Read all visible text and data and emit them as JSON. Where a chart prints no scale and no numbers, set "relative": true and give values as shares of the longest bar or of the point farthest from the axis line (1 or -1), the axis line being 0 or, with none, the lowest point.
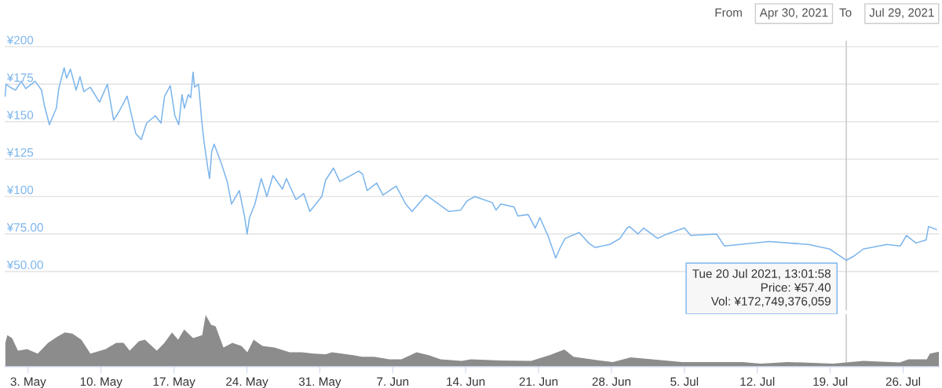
{
  "chart_data": [
    {
      "type": "line",
      "tick_labels": "y",
      "grid": "y",
      "xlim": [
        "2021-04-30T18:00",
        "2021-07-29T11:00"
      ],
      "ylim": [
        24,
        204
      ],
      "yticks": [
        {
          "value": 50,
          "label": "¥50.00"
        },
        {
          "value": 75,
          "label": "¥75.00"
        },
        {
          "value": 100,
          "label": "¥100"
        },
        {
          "value": 125,
          "label": "¥125"
        },
        {
          "value": 150,
          "label": "¥150"
        },
        {
          "value": 175,
          "label": "¥175"
        },
        {
          "value": 200,
          "label": "¥200"
        }
      ],
      "series": [
        {
          "color": "#7cb5ec",
          "x": [
            "2021-04-30T19:00",
            "2021-04-30T21:00",
            "2021-05-01T06:30",
            "2021-05-01T19:00",
            "2021-05-02T08:00",
            "2021-05-02T18:30",
            "2021-05-03T16:00",
            "2021-05-04T07:00",
            "2021-05-04T14:00",
            "2021-05-05T01:00",
            "2021-05-05T17:00",
            "2021-05-05T22:30",
            "2021-05-06T11:00",
            "2021-05-06T16:30",
            "2021-05-07T01:30",
            "2021-05-07T14:30",
            "2021-05-07T23:30",
            "2021-05-08T08:30",
            "2021-05-08T23:00",
            "2021-05-09T20:30",
            "2021-05-10T14:30",
            "2021-05-11T05:00",
            "2021-05-11T18:00",
            "2021-05-12T12:00",
            "2021-05-13T08:00",
            "2021-05-13T20:30",
            "2021-05-14T09:00",
            "2021-05-15T05:00",
            "2021-05-15T18:00",
            "2021-05-16T02:30",
            "2021-05-16T15:30",
            "2021-05-17T02:00",
            "2021-05-17T11:00",
            "2021-05-17T18:30",
            "2021-05-18T00:00",
            "2021-05-18T09:00",
            "2021-05-18T14:30",
            "2021-05-18T20:00",
            "2021-05-18T23:30",
            "2021-05-19T08:30",
            "2021-05-19T12:00",
            "2021-05-19T15:30",
            "2021-05-19T21:00",
            "2021-05-20T06:00",
            "2021-05-20T10:00",
            "2021-05-20T15:00",
            "2021-05-20T20:30",
            "2021-05-21T14:30",
            "2021-05-22T03:30",
            "2021-05-22T12:30",
            "2021-05-23T06:30",
            "2021-05-23T19:00",
            "2021-05-24T00:30",
            "2021-05-24T06:00",
            "2021-05-24T18:30",
            "2021-05-25T09:00",
            "2021-05-25T22:00",
            "2021-05-26T12:00",
            "2021-05-27T10:00",
            "2021-05-27T19:00",
            "2021-05-28T17:00",
            "2021-05-29T11:00",
            "2021-05-30T01:00",
            "2021-05-31T04:30",
            "2021-05-31T13:30",
            "2021-06-01T07:30",
            "2021-06-01T22:00",
            "2021-06-03T17:30",
            "2021-06-04T02:30",
            "2021-06-04T13:00",
            "2021-06-05T11:00",
            "2021-06-06T01:30",
            "2021-06-07T08:00",
            "2021-06-08T06:00",
            "2021-06-08T20:30",
            "2021-06-10T05:00",
            "2021-06-12T09:30",
            "2021-06-13T12:30",
            "2021-06-14T03:00",
            "2021-06-14T21:00",
            "2021-06-16T13:00",
            "2021-06-16T22:00",
            "2021-06-17T09:00",
            "2021-06-18T15:30",
            "2021-06-19T00:30",
            "2021-06-20T00:00",
            "2021-06-20T16:30",
            "2021-06-21T03:00",
            "2021-06-21T21:30",
            "2021-06-22T15:30",
            "2021-06-23T00:30",
            "2021-06-23T13:00",
            "2021-06-24T21:30",
            "2021-06-25T19:30",
            "2021-06-26T10:00",
            "2021-06-27T20:00",
            "2021-06-28T19:30",
            "2021-06-29T12:00",
            "2021-06-29T17:30",
            "2021-06-30T13:00",
            "2021-07-01T02:00",
            "2021-07-02T10:30",
            "2021-07-03T08:00",
            "2021-07-05T00:00",
            "2021-07-05T14:30",
            "2021-07-08T02:00",
            "2021-07-08T20:00",
            "2021-07-13T03:30",
            "2021-07-16T21:30",
            "2021-07-18T22:30",
            "2021-07-20T13:01",
            "2021-07-21T05:00",
            "2021-07-22T04:30",
            "2021-07-24T10:30",
            "2021-07-25T17:30",
            "2021-07-26T07:30",
            "2021-07-27T05:30",
            "2021-07-28T05:00",
            "2021-07-28T10:30",
            "2021-07-29T04:30"
          ],
          "values": [
            167,
            175,
            173,
            171,
            177,
            172,
            177,
            171,
            160,
            148,
            159,
            172,
            186,
            179,
            185,
            171,
            180,
            170,
            173,
            163,
            175,
            151,
            157,
            167,
            142,
            138,
            149,
            154,
            149,
            167,
            174,
            154,
            148,
            168,
            159,
            168,
            166,
            183,
            173,
            175,
            164,
            152,
            137,
            119,
            112,
            130,
            135,
            121,
            109,
            95,
            104,
            86,
            75,
            86,
            95,
            112,
            100,
            114,
            105,
            112,
            98,
            102,
            90,
            100,
            111,
            119,
            110,
            117,
            115,
            104,
            109,
            101,
            107,
            95,
            90,
            101,
            90,
            91,
            97,
            100,
            96,
            91,
            95,
            93,
            87,
            88,
            79,
            86,
            74,
            59,
            65,
            72,
            76,
            69,
            66,
            68,
            72,
            79,
            80,
            75,
            79,
            72,
            75,
            79,
            74,
            75,
            67,
            70,
            68,
            65,
            57.4,
            60,
            65,
            68,
            67,
            74,
            69,
            71,
            80,
            78
          ]
        }
      ],
      "ref_lines": [
        {
          "axis": "x",
          "value": "2021-07-20T13:01",
          "color": "#cccccc"
        }
      ],
      "annotations": [
        "From",
        "Apr 30, 2021",
        "To",
        "Jul 29, 2021",
        {
          "text": "Tue 20 Jul 2021, 13:01:58\nPrice: ¥57.40\nVol: ¥172,749,376,059",
          "x": "2021-07-20T13:01",
          "y": 57.4
        }
      ]
    },
    {
      "type": "area",
      "relative": true,
      "tick_labels": "x",
      "xlim": [
        "2021-04-30T18:00",
        "2021-07-29T11:00"
      ],
      "xticks": [
        {
          "value": "2021-05-03",
          "label": "3. May"
        },
        {
          "value": "2021-05-10",
          "label": "10. May"
        },
        {
          "value": "2021-05-17",
          "label": "17. May"
        },
        {
          "value": "2021-05-24",
          "label": "24. May"
        },
        {
          "value": "2021-05-31",
          "label": "31. May"
        },
        {
          "value": "2021-06-07",
          "label": "7. Jun"
        },
        {
          "value": "2021-06-14",
          "label": "14. Jun"
        },
        {
          "value": "2021-06-21",
          "label": "21. Jun"
        },
        {
          "value": "2021-06-28",
          "label": "28. Jun"
        },
        {
          "value": "2021-07-05",
          "label": "5. Jul"
        },
        {
          "value": "2021-07-12",
          "label": "12. Jul"
        },
        {
          "value": "2021-07-19",
          "label": "19. Jul"
        },
        {
          "value": "2021-07-26",
          "label": "26. Jul"
        }
      ],
      "series": [
        {
          "color": "#8c8c8c",
          "x": [
            "2021-04-30T19:30",
            "2021-05-01T00:00",
            "2021-05-01T11:00",
            "2021-05-02T00:30",
            "2021-05-02T21:30",
            "2021-05-03T22:00",
            "2021-05-04T22:00",
            "2021-05-05T19:00",
            "2021-05-06T12:30",
            "2021-05-07T06:00",
            "2021-05-08T02:30",
            "2021-05-08T23:30",
            "2021-05-10T10:30",
            "2021-05-11T11:00",
            "2021-05-12T04:00",
            "2021-05-12T18:00",
            "2021-05-13T15:00",
            "2021-05-14T05:00",
            "2021-05-15T08:30",
            "2021-05-16T02:00",
            "2021-05-16T19:30",
            "2021-05-17T09:30",
            "2021-05-17T23:30",
            "2021-05-18T20:00",
            "2021-05-19T17:00",
            "2021-05-20T01:00",
            "2021-05-20T13:30",
            "2021-05-21T00:00",
            "2021-05-21T18:00",
            "2021-05-22T14:30",
            "2021-05-23T11:30",
            "2021-05-24T01:00",
            "2021-05-24T15:30",
            "2021-05-25T12:00",
            "2021-05-26T16:00",
            "2021-05-28T02:30",
            "2021-05-29T06:30",
            "2021-05-30T10:30",
            "2021-05-31T14:00",
            "2021-06-01T04:00",
            "2021-06-03T05:00",
            "2021-06-04T01:30",
            "2021-06-05T05:30",
            "2021-06-06T16:30",
            "2021-06-07T20:00",
            "2021-06-09T07:00",
            "2021-06-10T11:00",
            "2021-06-11T14:30",
            "2021-06-13T15:00",
            "2021-06-14T12:00",
            "2021-06-17T09:30",
            "2021-06-20T07:00",
            "2021-06-22T01:00",
            "2021-06-23T11:30",
            "2021-06-24T08:30",
            "2021-06-26T02:00",
            "2021-06-28T03:00",
            "2021-06-29T20:30",
            "2021-07-01T21:30",
            "2021-07-04T19:00",
            "2021-07-07T16:30",
            "2021-07-10T14:00",
            "2021-07-12T07:30",
            "2021-07-14T22:30",
            "2021-07-19T06:30",
            "2021-07-22T04:30",
            "2021-07-25T16:00",
            "2021-07-26T12:30",
            "2021-07-28T06:30",
            "2021-07-28T13:30",
            "2021-07-29T10:30"
          ],
          "values": [
            0.46,
            0.61,
            0.55,
            0.31,
            0.34,
            0.25,
            0.46,
            0.58,
            0.66,
            0.64,
            0.52,
            0.25,
            0.34,
            0.46,
            0.46,
            0.31,
            0.49,
            0.52,
            0.31,
            0.46,
            0.66,
            0.52,
            0.72,
            0.55,
            0.61,
            1.0,
            0.81,
            0.78,
            0.37,
            0.46,
            0.4,
            0.28,
            0.52,
            0.4,
            0.37,
            0.28,
            0.28,
            0.25,
            0.24,
            0.28,
            0.22,
            0.19,
            0.19,
            0.14,
            0.14,
            0.28,
            0.22,
            0.14,
            0.11,
            0.14,
            0.12,
            0.11,
            0.22,
            0.33,
            0.19,
            0.14,
            0.09,
            0.18,
            0.14,
            0.09,
            0.09,
            0.09,
            0.06,
            0.09,
            0.06,
            0.11,
            0.08,
            0.14,
            0.14,
            0.25,
            0.29
          ]
        }
      ],
      "ref_lines": [
        {
          "axis": "x",
          "value": "2021-07-20T13:01",
          "color": "#cccccc"
        }
      ]
    }
  ]
}
